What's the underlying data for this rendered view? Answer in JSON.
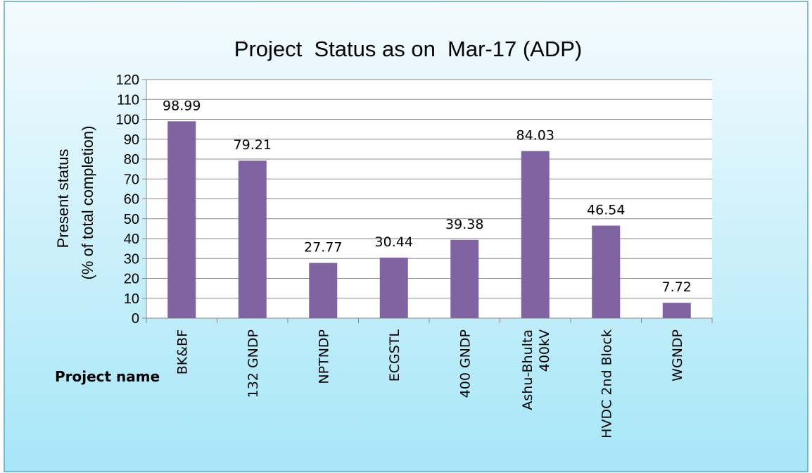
{
  "chart_data": {
    "type": "bar",
    "title": "Project  Status as on  Mar-17 (ADP)",
    "y_label": [
      "Present status",
      "(% of total completion)"
    ],
    "x_label": "Project name",
    "categories": [
      "BK&BF",
      "132 GNDP",
      "NPTNDP",
      "ECGSTL",
      "400 GNDP",
      "Ashu-Bhulta\n400kV",
      "HVDC 2nd Block",
      "WGNDP"
    ],
    "values": [
      98.99,
      79.21,
      27.77,
      30.44,
      39.38,
      84.03,
      46.54,
      7.72
    ],
    "color": "#8064a2",
    "ylim": [
      0,
      120
    ],
    "yticks": [
      0,
      10,
      20,
      30,
      40,
      50,
      60,
      70,
      80,
      90,
      100,
      110,
      120
    ],
    "grid": true
  }
}
